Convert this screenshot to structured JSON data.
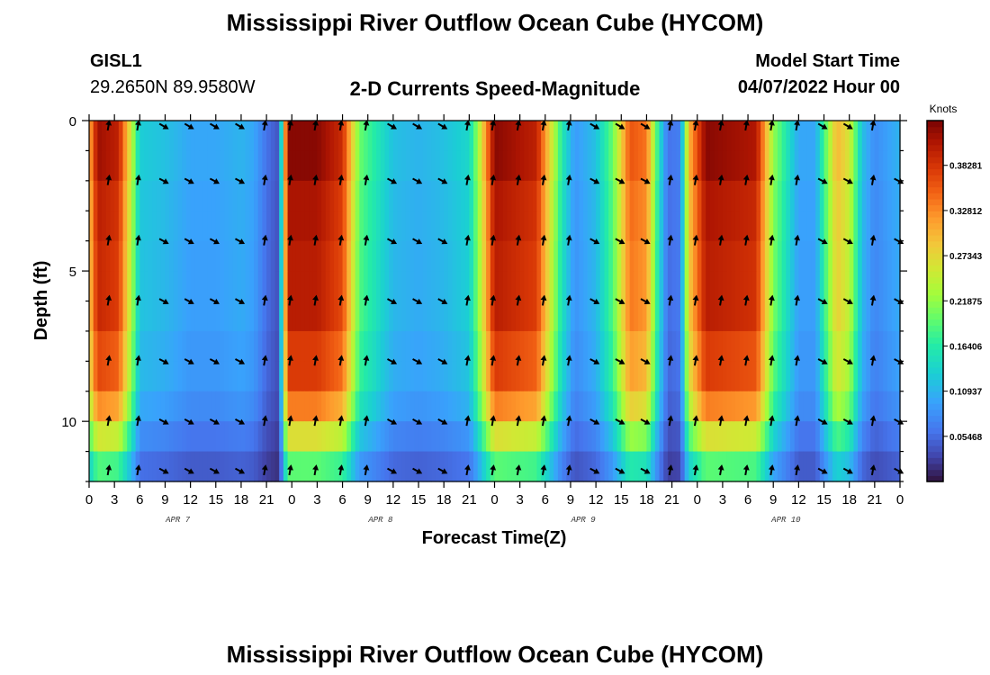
{
  "page": {
    "title": "Mississippi River Outflow Ocean Cube (HYCOM)",
    "station_id": "GISL1",
    "station_coords": "29.2650N  89.9580W",
    "product": "2-D Currents Speed-Magnitude",
    "model_start_label": "Model Start Time",
    "model_start_value": "04/07/2022 Hour 00",
    "footer_title": "Mississippi River Outflow Ocean Cube (HYCOM)"
  },
  "chart_data": {
    "type": "heatmap",
    "title": "2-D Currents Speed-Magnitude",
    "xlabel": "Forecast Time(Z)",
    "ylabel": "Depth (ft)",
    "x_tick_labels": [
      "0",
      "3",
      "6",
      "9",
      "12",
      "15",
      "18",
      "21",
      "0",
      "3",
      "6",
      "9",
      "12",
      "15",
      "18",
      "21",
      "0",
      "3",
      "6",
      "9",
      "12",
      "15",
      "18",
      "21",
      "0",
      "3",
      "6",
      "9",
      "12",
      "15",
      "18",
      "21",
      "0"
    ],
    "x_date_labels": [
      "APR 7",
      "APR 8",
      "APR 9",
      "APR 10"
    ],
    "xlim_hours": [
      0,
      96
    ],
    "ylim_ft": [
      0,
      12
    ],
    "y_ticks": [
      0,
      5,
      10
    ],
    "colorbar": {
      "unit_label": "Knots",
      "range": [
        0.0,
        0.437
      ],
      "tick_labels": [
        "0.05468",
        "0.10937",
        "0.16406",
        "0.21875",
        "0.27343",
        "0.32812",
        "0.38281"
      ],
      "tick_values": [
        0.05468,
        0.10937,
        0.16406,
        0.21875,
        0.27343,
        0.32812,
        0.38281
      ]
    },
    "depth_levels_ft": [
      0,
      2,
      4,
      6,
      8,
      10,
      12
    ],
    "arrow_hours": [
      2.5,
      6,
      9,
      12,
      15,
      18,
      21,
      24,
      27,
      30,
      33,
      36,
      39,
      42,
      45,
      48,
      51,
      54,
      57,
      60,
      63,
      66,
      69,
      72,
      75,
      78,
      81,
      84,
      87,
      90,
      93,
      96
    ],
    "arrow_up_hours": [
      2.5,
      6,
      21,
      24,
      27,
      30,
      33,
      45,
      48,
      51,
      54,
      57,
      69,
      72,
      75,
      78,
      81,
      84,
      93
    ],
    "speed_profile": [
      {
        "hour": 0,
        "speed": 0.3
      },
      {
        "hour": 1,
        "speed": 0.42
      },
      {
        "hour": 3.5,
        "speed": 0.4
      },
      {
        "hour": 5,
        "speed": 0.25
      },
      {
        "hour": 6,
        "speed": 0.13
      },
      {
        "hour": 9,
        "speed": 0.12
      },
      {
        "hour": 12,
        "speed": 0.1
      },
      {
        "hour": 15,
        "speed": 0.1
      },
      {
        "hour": 18,
        "speed": 0.11
      },
      {
        "hour": 19.5,
        "speed": 0.1
      },
      {
        "hour": 21,
        "speed": 0.06
      },
      {
        "hour": 22.5,
        "speed": 0.04
      },
      {
        "hour": 23.5,
        "speed": 0.43
      },
      {
        "hour": 27,
        "speed": 0.43
      },
      {
        "hour": 30,
        "speed": 0.39
      },
      {
        "hour": 32,
        "speed": 0.2
      },
      {
        "hour": 36,
        "speed": 0.12
      },
      {
        "hour": 39,
        "speed": 0.11
      },
      {
        "hour": 42,
        "speed": 0.12
      },
      {
        "hour": 45,
        "speed": 0.14
      },
      {
        "hour": 46,
        "speed": 0.22
      },
      {
        "hour": 48,
        "speed": 0.43
      },
      {
        "hour": 53,
        "speed": 0.4
      },
      {
        "hour": 56,
        "speed": 0.16
      },
      {
        "hour": 57.5,
        "speed": 0.09
      },
      {
        "hour": 60,
        "speed": 0.12
      },
      {
        "hour": 62,
        "speed": 0.2
      },
      {
        "hour": 64,
        "speed": 0.36
      },
      {
        "hour": 66,
        "speed": 0.34
      },
      {
        "hour": 67.5,
        "speed": 0.15
      },
      {
        "hour": 68.5,
        "speed": 0.06
      },
      {
        "hour": 70,
        "speed": 0.07
      },
      {
        "hour": 71,
        "speed": 0.3
      },
      {
        "hour": 73,
        "speed": 0.43
      },
      {
        "hour": 79,
        "speed": 0.41
      },
      {
        "hour": 81,
        "speed": 0.22
      },
      {
        "hour": 84,
        "speed": 0.1
      },
      {
        "hour": 86,
        "speed": 0.1
      },
      {
        "hour": 87,
        "speed": 0.18
      },
      {
        "hour": 88.5,
        "speed": 0.3
      },
      {
        "hour": 90,
        "speed": 0.26
      },
      {
        "hour": 91.5,
        "speed": 0.12
      },
      {
        "hour": 93,
        "speed": 0.08
      },
      {
        "hour": 96,
        "speed": 0.11
      }
    ]
  }
}
